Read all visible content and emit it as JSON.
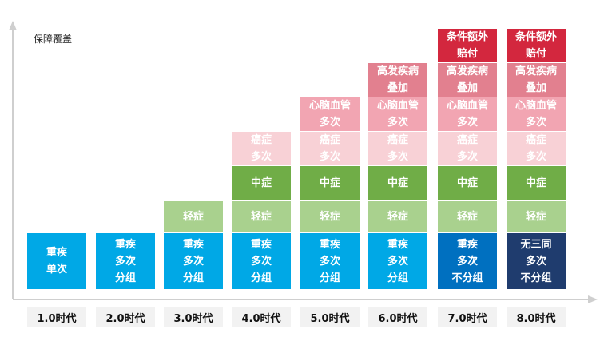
{
  "axis_title": "保障覆盖",
  "colors": {
    "blue": "#00a8e6",
    "blue_dark": "#0070c0",
    "navy": "#1f3c6e",
    "green_light": "#a9d18e",
    "green": "#70ad47",
    "pink_light": "#f8d1d6",
    "pink": "#f2a5b2",
    "rose": "#e2808f",
    "red": "#d3273e"
  },
  "eras": [
    {
      "label": "1.0时代",
      "blocks": [
        {
          "row": "base",
          "text": "重疾\n单次",
          "color": "blue"
        }
      ]
    },
    {
      "label": "2.0时代",
      "blocks": [
        {
          "row": "base",
          "text": "重疾\n多次\n分组",
          "color": "blue"
        }
      ]
    },
    {
      "label": "3.0时代",
      "blocks": [
        {
          "row": "base",
          "text": "重疾\n多次\n分组",
          "color": "blue"
        },
        {
          "row": "light",
          "text": "轻症",
          "color": "green_light"
        }
      ]
    },
    {
      "label": "4.0时代",
      "blocks": [
        {
          "row": "base",
          "text": "重疾\n多次\n分组",
          "color": "blue"
        },
        {
          "row": "light",
          "text": "轻症",
          "color": "green_light"
        },
        {
          "row": "mid",
          "text": "中症",
          "color": "green"
        },
        {
          "row": "cancer",
          "text": "癌症\n多次",
          "color": "pink_light"
        }
      ]
    },
    {
      "label": "5.0时代",
      "blocks": [
        {
          "row": "base",
          "text": "重疾\n多次\n分组",
          "color": "blue"
        },
        {
          "row": "light",
          "text": "轻症",
          "color": "green_light"
        },
        {
          "row": "mid",
          "text": "中症",
          "color": "green"
        },
        {
          "row": "cancer",
          "text": "癌症\n多次",
          "color": "pink_light"
        },
        {
          "row": "heart",
          "text": "心脑血管\n多次",
          "color": "pink"
        }
      ]
    },
    {
      "label": "6.0时代",
      "blocks": [
        {
          "row": "base",
          "text": "重疾\n多次\n分组",
          "color": "blue"
        },
        {
          "row": "light",
          "text": "轻症",
          "color": "green_light"
        },
        {
          "row": "mid",
          "text": "中症",
          "color": "green"
        },
        {
          "row": "cancer",
          "text": "癌症\n多次",
          "color": "pink_light"
        },
        {
          "row": "heart",
          "text": "心脑血管\n多次",
          "color": "pink"
        },
        {
          "row": "high",
          "text": "高发疾病\n叠加",
          "color": "rose"
        }
      ]
    },
    {
      "label": "7.0时代",
      "blocks": [
        {
          "row": "base",
          "text": "重疾\n多次\n不分组",
          "color": "blue_dark"
        },
        {
          "row": "light",
          "text": "轻症",
          "color": "green_light"
        },
        {
          "row": "mid",
          "text": "中症",
          "color": "green"
        },
        {
          "row": "cancer",
          "text": "癌症\n多次",
          "color": "pink_light"
        },
        {
          "row": "heart",
          "text": "心脑血管\n多次",
          "color": "pink"
        },
        {
          "row": "high",
          "text": "高发疾病\n叠加",
          "color": "rose"
        },
        {
          "row": "extra",
          "text": "条件额外\n赔付",
          "color": "red"
        }
      ]
    },
    {
      "label": "8.0时代",
      "blocks": [
        {
          "row": "base",
          "text": "无三同\n多次\n不分组",
          "color": "navy"
        },
        {
          "row": "light",
          "text": "轻症",
          "color": "green_light"
        },
        {
          "row": "mid",
          "text": "中症",
          "color": "green"
        },
        {
          "row": "cancer",
          "text": "癌症\n多次",
          "color": "pink_light"
        },
        {
          "row": "heart",
          "text": "心脑血管\n多次",
          "color": "pink"
        },
        {
          "row": "high",
          "text": "高发疾病\n叠加",
          "color": "rose"
        },
        {
          "row": "extra",
          "text": "条件额外\n赔付",
          "color": "red"
        }
      ]
    }
  ]
}
